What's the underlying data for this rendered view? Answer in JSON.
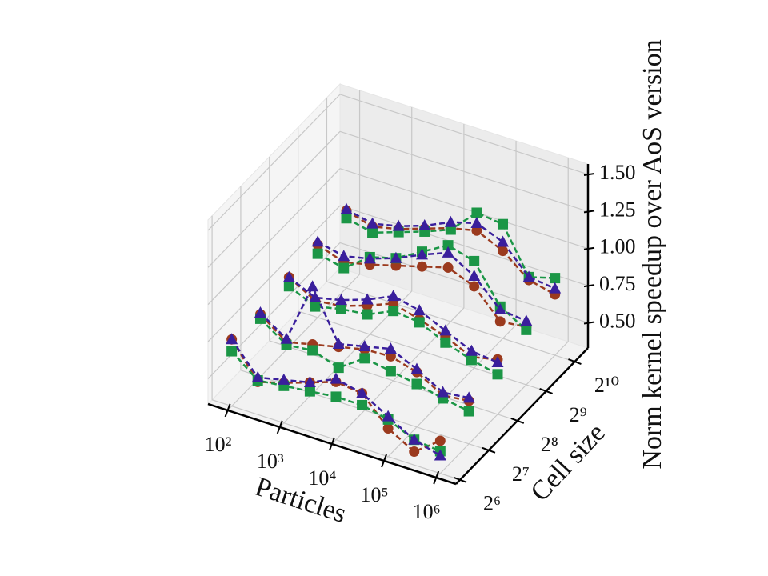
{
  "chart_data": {
    "type": "line3d",
    "xlabel": "Particles",
    "ylabel": "Cell size",
    "zlabel": "Norm kernel speedup over AoS version",
    "xscale": "log",
    "yscale": "log",
    "xlim": [
      42,
      2400000
    ],
    "ylim": [
      58,
      1410
    ],
    "zlim": [
      0.33,
      1.57
    ],
    "xticks": [
      {
        "value": 100,
        "label": "10²"
      },
      {
        "value": 1000,
        "label": "10³"
      },
      {
        "value": 10000,
        "label": "10⁴"
      },
      {
        "value": 100000,
        "label": "10⁵"
      },
      {
        "value": 1000000,
        "label": "10⁶"
      }
    ],
    "yticks": [
      {
        "value": 64,
        "label": "2⁶"
      },
      {
        "value": 128,
        "label": "2⁷"
      },
      {
        "value": 256,
        "label": "2⁸"
      },
      {
        "value": 512,
        "label": "2⁹"
      },
      {
        "value": 1024,
        "label": "2¹⁰"
      }
    ],
    "zticks": [
      {
        "value": 0.5,
        "label": "0.50"
      },
      {
        "value": 0.75,
        "label": "0.75"
      },
      {
        "value": 1.0,
        "label": "1.00"
      },
      {
        "value": 1.25,
        "label": "1.25"
      },
      {
        "value": 1.5,
        "label": "1.50"
      }
    ],
    "grid": true,
    "x": [
      100,
      316,
      1000,
      3162,
      10000,
      31623,
      100000,
      316228,
      1000000
    ],
    "series": [
      {
        "marker": "circle",
        "color": "#9b3a1e",
        "cell_size": 64,
        "values": [
          0.78,
          0.55,
          0.6,
          0.66,
          0.72,
          0.7,
          0.52,
          0.42,
          0.55
        ]
      },
      {
        "marker": "circle",
        "color": "#9b3a1e",
        "cell_size": 128,
        "values": [
          0.75,
          0.62,
          0.66,
          0.7,
          0.74,
          0.75,
          0.7,
          0.6,
          0.62
        ]
      },
      {
        "marker": "circle",
        "color": "#9b3a1e",
        "cell_size": 256,
        "values": [
          0.8,
          0.7,
          0.72,
          0.78,
          0.85,
          0.8,
          0.74,
          0.66,
          0.7
        ]
      },
      {
        "marker": "circle",
        "color": "#9b3a1e",
        "cell_size": 512,
        "values": [
          0.82,
          0.76,
          0.8,
          0.85,
          0.9,
          0.95,
          0.88,
          0.7,
          0.72
        ]
      },
      {
        "marker": "circle",
        "color": "#9b3a1e",
        "cell_size": 1024,
        "values": [
          0.85,
          0.8,
          0.84,
          0.9,
          0.96,
          1.0,
          0.92,
          0.78,
          0.74
        ]
      },
      {
        "marker": "square",
        "color": "#1b9646",
        "cell_size": 64,
        "values": [
          0.7,
          0.56,
          0.58,
          0.6,
          0.62,
          0.62,
          0.58,
          0.5,
          0.48
        ]
      },
      {
        "marker": "square",
        "color": "#1b9646",
        "cell_size": 128,
        "values": [
          0.72,
          0.6,
          0.62,
          0.56,
          0.68,
          0.65,
          0.62,
          0.58,
          0.55
        ]
      },
      {
        "marker": "square",
        "color": "#1b9646",
        "cell_size": 256,
        "values": [
          0.74,
          0.66,
          0.7,
          0.72,
          0.8,
          0.78,
          0.7,
          0.64,
          0.6
        ]
      },
      {
        "marker": "square",
        "color": "#1b9646",
        "cell_size": 512,
        "values": [
          0.76,
          0.72,
          0.85,
          0.9,
          1.0,
          1.1,
          1.05,
          0.8,
          0.7
        ]
      },
      {
        "marker": "square",
        "color": "#1b9646",
        "cell_size": 1024,
        "values": [
          0.8,
          0.76,
          0.82,
          0.88,
          0.95,
          1.12,
          1.1,
          0.8,
          0.85
        ]
      },
      {
        "marker": "triangle",
        "color": "#3a1f9c",
        "cell_size": 64,
        "values": [
          0.78,
          0.58,
          0.62,
          0.66,
          0.74,
          0.7,
          0.6,
          0.5,
          0.45
        ]
      },
      {
        "marker": "triangle",
        "color": "#3a1f9c",
        "cell_size": 128,
        "values": [
          0.76,
          0.64,
          1.05,
          0.72,
          0.76,
          0.8,
          0.72,
          0.62,
          0.64
        ]
      },
      {
        "marker": "triangle",
        "color": "#3a1f9c",
        "cell_size": 256,
        "values": [
          0.8,
          0.72,
          0.76,
          0.82,
          0.9,
          0.86,
          0.78,
          0.7,
          0.68
        ]
      },
      {
        "marker": "triangle",
        "color": "#3a1f9c",
        "cell_size": 512,
        "values": [
          0.84,
          0.8,
          0.84,
          0.9,
          0.98,
          1.05,
          0.95,
          0.78,
          0.76
        ]
      },
      {
        "marker": "triangle",
        "color": "#3a1f9c",
        "cell_size": 1024,
        "values": [
          0.86,
          0.82,
          0.86,
          0.92,
          1.0,
          1.05,
          0.98,
          0.8,
          0.78
        ]
      }
    ]
  }
}
